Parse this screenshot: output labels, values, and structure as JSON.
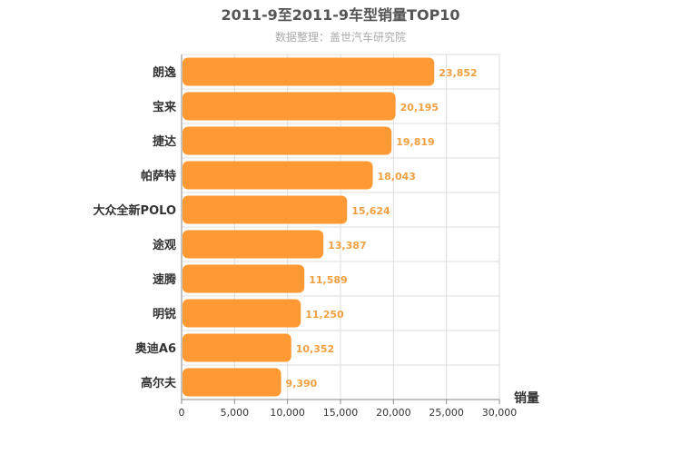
{
  "chart_data": {
    "type": "bar",
    "orientation": "horizontal",
    "title": "2011-9至2011-9车型销量TOP10",
    "subtitle": "数据整理：盖世汽车研究院",
    "xlabel": "销量",
    "ylabel": "",
    "categories": [
      "朗逸",
      "宝来",
      "捷达",
      "帕萨特",
      "大众全新POLO",
      "途观",
      "速腾",
      "明锐",
      "奥迪A6",
      "高尔夫"
    ],
    "values": [
      23852,
      20195,
      19819,
      18043,
      15624,
      13387,
      11589,
      11250,
      10352,
      9390
    ],
    "value_labels": [
      "23,852",
      "20,195",
      "19,819",
      "18,043",
      "15,624",
      "13,387",
      "11,589",
      "11,250",
      "10,352",
      "9,390"
    ],
    "xlim": [
      0,
      30000
    ],
    "xticks": [
      0,
      5000,
      10000,
      15000,
      20000,
      25000,
      30000
    ],
    "xtick_labels": [
      "0",
      "5,000",
      "10,000",
      "15,000",
      "20,000",
      "25,000",
      "30,000"
    ],
    "grid": true,
    "legend": "none",
    "colors": {
      "bar": "#ff9933",
      "data_label": "#f0a040",
      "grid": "#dddddd",
      "axis": "#888888"
    }
  }
}
